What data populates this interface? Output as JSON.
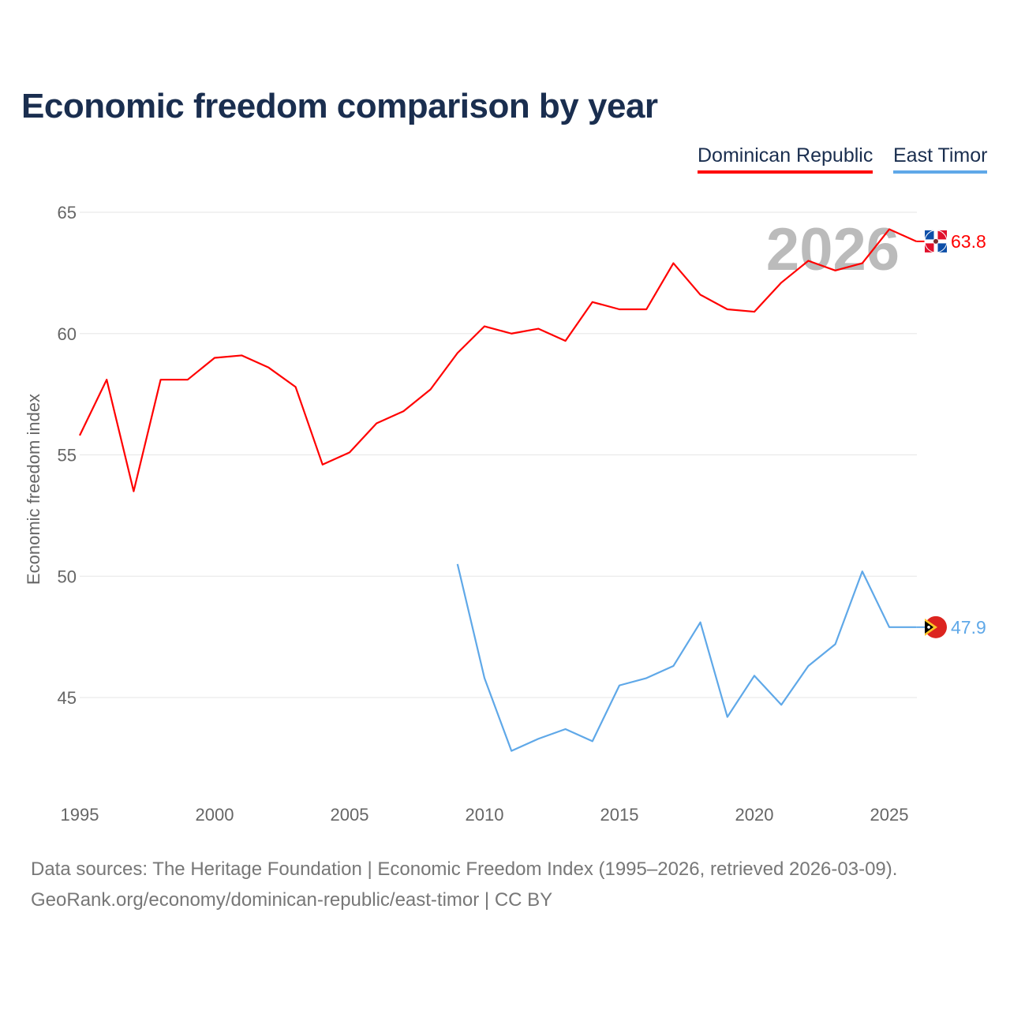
{
  "chart_data": {
    "type": "line",
    "title": "Economic freedom comparison by year",
    "xlabel": "",
    "ylabel": "Economic freedom index",
    "xlim": [
      1995,
      2026
    ],
    "ylim": [
      41,
      66
    ],
    "yticks": [
      45,
      50,
      55,
      60,
      65
    ],
    "xticks": [
      1995,
      2000,
      2005,
      2010,
      2015,
      2020,
      2025
    ],
    "grid": true,
    "legend_position": "top-right",
    "year_watermark": "2026",
    "series": [
      {
        "name": "Dominican Republic",
        "color": "#ff0000",
        "end_label": "63.8",
        "x": [
          1995,
          1996,
          1997,
          1998,
          1999,
          2000,
          2001,
          2002,
          2003,
          2004,
          2005,
          2006,
          2007,
          2008,
          2009,
          2010,
          2011,
          2012,
          2013,
          2014,
          2015,
          2016,
          2017,
          2018,
          2019,
          2020,
          2021,
          2022,
          2023,
          2024,
          2025,
          2026
        ],
        "values": [
          55.8,
          58.1,
          53.5,
          58.1,
          58.1,
          59.0,
          59.1,
          58.6,
          57.8,
          54.6,
          55.1,
          56.3,
          56.8,
          57.7,
          59.2,
          60.3,
          60.0,
          60.2,
          59.7,
          61.3,
          61.0,
          61.0,
          62.9,
          61.6,
          61.0,
          60.9,
          62.1,
          63.0,
          62.6,
          62.9,
          64.3,
          63.8
        ]
      },
      {
        "name": "East Timor",
        "color": "#5fa8e8",
        "end_label": "47.9",
        "x": [
          2009,
          2010,
          2011,
          2012,
          2013,
          2014,
          2015,
          2016,
          2017,
          2018,
          2019,
          2020,
          2021,
          2022,
          2023,
          2024,
          2025,
          2026
        ],
        "values": [
          50.5,
          45.8,
          42.8,
          43.3,
          43.7,
          43.2,
          45.5,
          45.8,
          46.3,
          48.1,
          44.2,
          45.9,
          44.7,
          46.3,
          47.2,
          50.2,
          47.9,
          47.9
        ]
      }
    ]
  },
  "footer": {
    "line1": "Data sources: The Heritage Foundation | Economic Freedom Index (1995–2026, retrieved 2026-03-09).",
    "line2": "GeoRank.org/economy/dominican-republic/east-timor | CC BY"
  }
}
